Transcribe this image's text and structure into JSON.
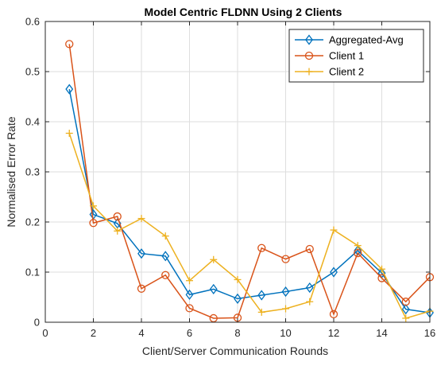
{
  "chart_data": {
    "type": "line",
    "title": "Model Centric FLDNN Using 2 Clients",
    "xlabel": "Client/Server Communication Rounds",
    "ylabel": "Normalised Error Rate",
    "xlim": [
      0,
      16
    ],
    "ylim": [
      0,
      0.6
    ],
    "xticks": [
      0,
      2,
      4,
      6,
      8,
      10,
      12,
      14,
      16
    ],
    "yticks": [
      0,
      0.1,
      0.2,
      0.3,
      0.4,
      0.5,
      0.6
    ],
    "grid": true,
    "legend_position": "top-right",
    "x": [
      1,
      2,
      3,
      4,
      5,
      6,
      7,
      8,
      9,
      10,
      11,
      12,
      13,
      14,
      15,
      16
    ],
    "series": [
      {
        "name": "Aggregated-Avg",
        "color": "#0072BD",
        "marker": "diamond",
        "values": [
          0.465,
          0.215,
          0.197,
          0.137,
          0.132,
          0.055,
          0.066,
          0.047,
          0.054,
          0.061,
          0.069,
          0.1,
          0.143,
          0.098,
          0.026,
          0.019
        ]
      },
      {
        "name": "Client 1",
        "color": "#D95319",
        "marker": "circle",
        "values": [
          0.555,
          0.198,
          0.211,
          0.067,
          0.094,
          0.028,
          0.008,
          0.009,
          0.148,
          0.126,
          0.146,
          0.016,
          0.138,
          0.088,
          0.041,
          0.09
        ]
      },
      {
        "name": "Client 2",
        "color": "#EDB120",
        "marker": "plus",
        "values": [
          0.377,
          0.232,
          0.182,
          0.207,
          0.172,
          0.083,
          0.125,
          0.085,
          0.02,
          0.027,
          0.041,
          0.184,
          0.153,
          0.106,
          0.008,
          0.022
        ]
      }
    ]
  }
}
